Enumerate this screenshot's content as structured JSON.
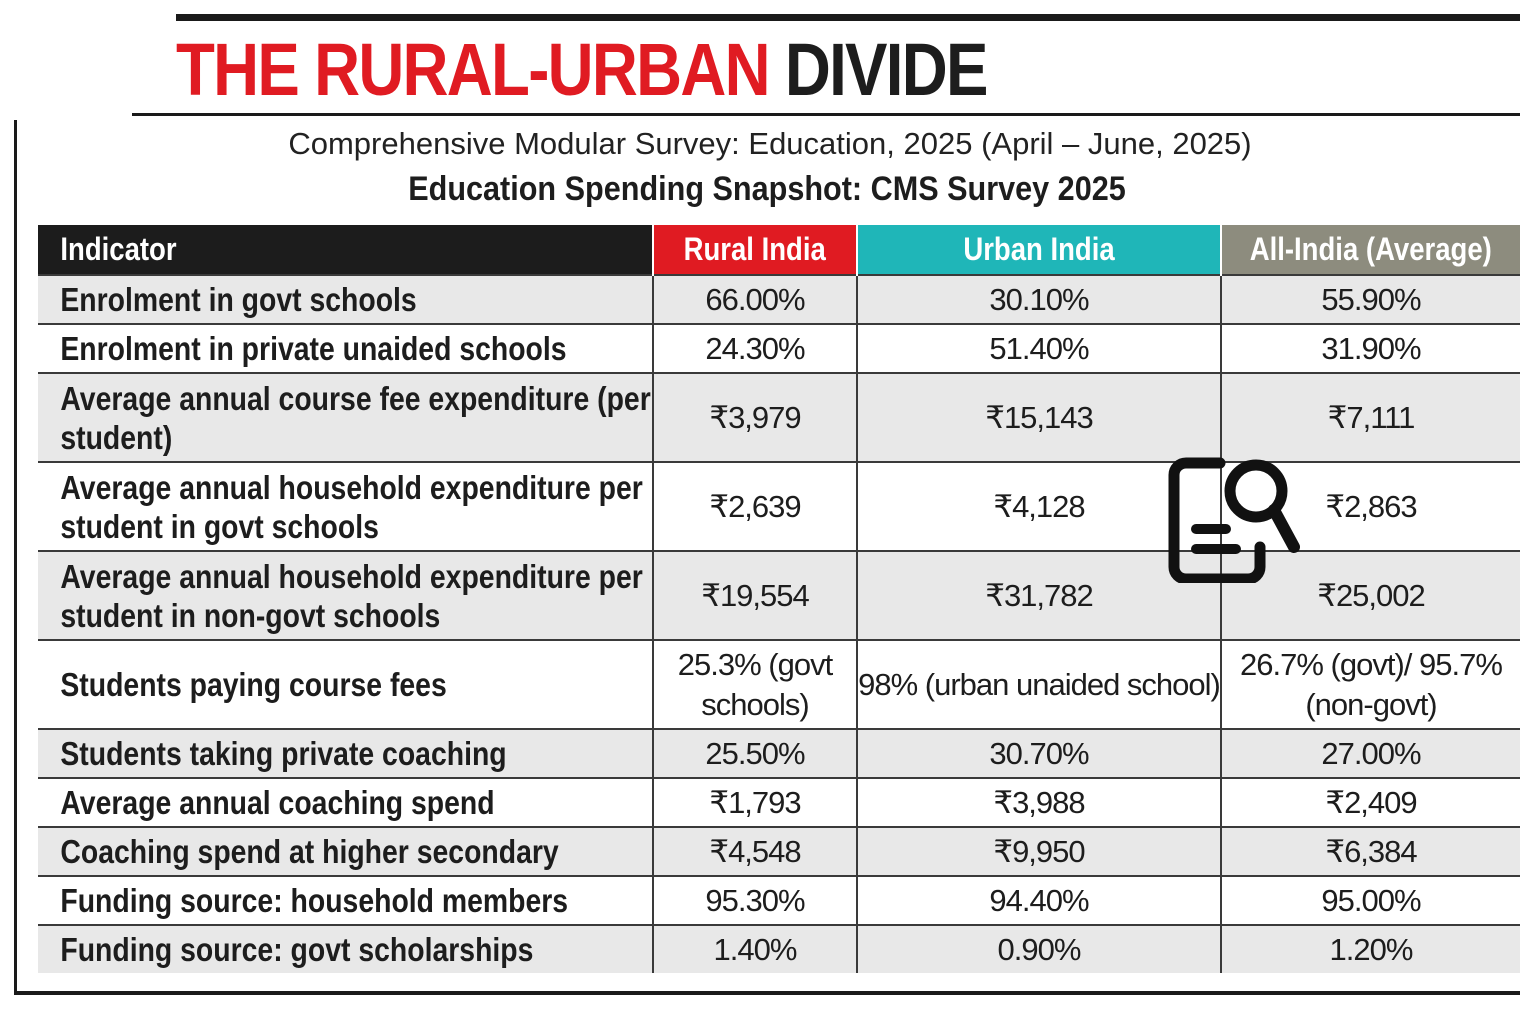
{
  "title": {
    "part1": "THE RURAL-URBAN",
    "part2": "DIVIDE"
  },
  "subtitle": "Comprehensive Modular Survey: Education, 2025 (April – June, 2025)",
  "chart_data": {
    "type": "table",
    "title": "Education Spending Snapshot: CMS Survey 2025",
    "columns": [
      "Indicator",
      "Rural India",
      "Urban India",
      "All-India (Average)"
    ],
    "column_colors": {
      "Indicator": "#1c1c1c",
      "Rural India": "#e01b22",
      "Urban India": "#1fb6b8",
      "All-India (Average)": "#8d8c7e"
    },
    "rows": [
      {
        "indicator": "Enrolment in govt schools",
        "rural": "66.00%",
        "urban": "30.10%",
        "all_india": "55.90%"
      },
      {
        "indicator": "Enrolment in private unaided schools",
        "rural": "24.30%",
        "urban": "51.40%",
        "all_india": "31.90%"
      },
      {
        "indicator": "Average annual course fee expenditure (per student)",
        "rural": "₹3,979",
        "urban": "₹15,143",
        "all_india": "₹7,111"
      },
      {
        "indicator": "Average annual household expenditure per student in govt schools",
        "rural": "₹2,639",
        "urban": "₹4,128",
        "all_india": "₹2,863"
      },
      {
        "indicator": "Average annual household expenditure per student in non-govt schools",
        "rural": "₹19,554",
        "urban": "₹31,782",
        "all_india": "₹25,002"
      },
      {
        "indicator": "Students paying course fees",
        "rural": "25.3% (govt schools)",
        "urban": "98% (urban unaided school)",
        "all_india": "26.7% (govt)/ 95.7% (non-govt)"
      },
      {
        "indicator": "Students taking private coaching",
        "rural": "25.50%",
        "urban": "30.70%",
        "all_india": "27.00%"
      },
      {
        "indicator": "Average annual coaching spend",
        "rural": "₹1,793",
        "urban": "₹3,988",
        "all_india": "₹2,409"
      },
      {
        "indicator": "Coaching spend at higher secondary",
        "rural": "₹4,548",
        "urban": "₹9,950",
        "all_india": "₹6,384"
      },
      {
        "indicator": "Funding source: household members",
        "rural": "95.30%",
        "urban": "94.40%",
        "all_india": "95.00%"
      },
      {
        "indicator": "Funding source: govt scholarships",
        "rural": "1.40%",
        "urban": "0.90%",
        "all_india": "1.20%"
      }
    ]
  },
  "overlay_icon": "document-search-icon"
}
